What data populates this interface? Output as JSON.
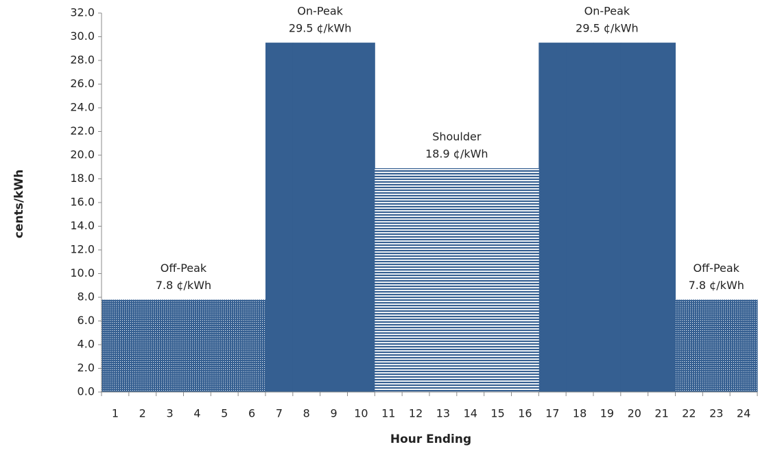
{
  "chart_data": {
    "type": "bar",
    "x_label": "Hour Ending",
    "y_label": "cents/kWh",
    "categories": [
      "1",
      "2",
      "3",
      "4",
      "5",
      "6",
      "7",
      "8",
      "9",
      "10",
      "11",
      "12",
      "13",
      "14",
      "15",
      "16",
      "17",
      "18",
      "19",
      "20",
      "21",
      "22",
      "23",
      "24"
    ],
    "series": [
      {
        "name": "Off-Peak",
        "value_label": "7.8 ¢/kWh",
        "color": "#355f91",
        "pattern": "dots",
        "values": [
          7.8,
          7.8,
          7.8,
          7.8,
          7.8,
          7.8,
          null,
          null,
          null,
          null,
          null,
          null,
          null,
          null,
          null,
          null,
          null,
          null,
          null,
          null,
          null,
          7.8,
          7.8,
          7.8
        ]
      },
      {
        "name": "On-Peak",
        "value_label": "29.5 ¢/kWh",
        "color": "#355f91",
        "pattern": "solid",
        "values": [
          null,
          null,
          null,
          null,
          null,
          null,
          29.5,
          29.5,
          29.5,
          29.5,
          null,
          null,
          null,
          null,
          null,
          null,
          29.5,
          29.5,
          29.5,
          29.5,
          29.5,
          null,
          null,
          null
        ]
      },
      {
        "name": "Shoulder",
        "value_label": "18.9 ¢/kWh",
        "color": "#355f91",
        "pattern": "stripes",
        "values": [
          null,
          null,
          null,
          null,
          null,
          null,
          null,
          null,
          null,
          null,
          18.9,
          18.9,
          18.9,
          18.9,
          18.9,
          18.9,
          null,
          null,
          null,
          null,
          null,
          null,
          null,
          null
        ]
      }
    ],
    "ylim": [
      0,
      32
    ],
    "yticks": [
      {
        "value": 0,
        "label": "0.0"
      },
      {
        "value": 2,
        "label": "2.0"
      },
      {
        "value": 4,
        "label": "4.0"
      },
      {
        "value": 6,
        "label": "6.0"
      },
      {
        "value": 8,
        "label": "8.0"
      },
      {
        "value": 10,
        "label": "10.0"
      },
      {
        "value": 12,
        "label": "12.0"
      },
      {
        "value": 14,
        "label": "14.0"
      },
      {
        "value": 16,
        "label": "16.0"
      },
      {
        "value": 18,
        "label": "18.0"
      },
      {
        "value": 20,
        "label": "20.0"
      },
      {
        "value": 22,
        "label": "22.0"
      },
      {
        "value": 24,
        "label": "24.0"
      },
      {
        "value": 26,
        "label": "26.0"
      },
      {
        "value": 28,
        "label": "28.0"
      },
      {
        "value": 30,
        "label": "30.0"
      },
      {
        "value": 32,
        "label": "32.0"
      }
    ],
    "grid": false
  }
}
